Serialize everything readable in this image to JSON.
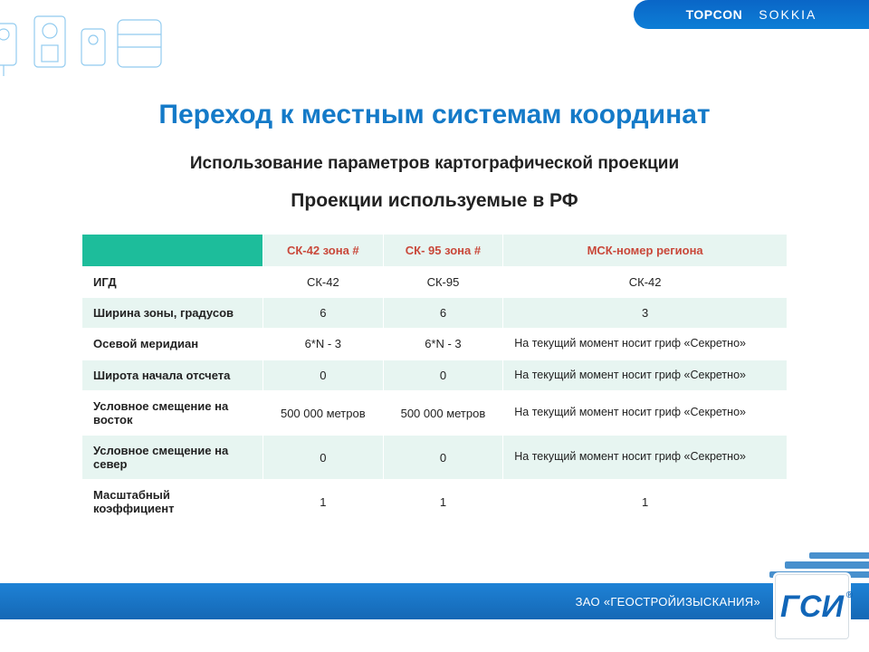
{
  "brand": {
    "left": "TOPCON",
    "right": "SOKKIA"
  },
  "title": "Переход к местным системам координат",
  "subtitle1": "Использование параметров картографической проекции",
  "subtitle2": "Проекции используемые в РФ",
  "table": {
    "header_blank": "",
    "columns": [
      "СК-42 зона #",
      "СК- 95 зона #",
      "МСК-номер региона"
    ],
    "rows": [
      {
        "label": "ИГД",
        "cells": [
          "СК-42",
          "СК-95",
          "СК-42"
        ]
      },
      {
        "label": "Ширина зоны, градусов",
        "cells": [
          "6",
          "6",
          "3"
        ]
      },
      {
        "label": "Осевой меридиан",
        "cells": [
          "6*N - 3",
          "6*N - 3",
          "На текущий момент носит гриф «Секретно»"
        ]
      },
      {
        "label": "Широта начала отсчета",
        "cells": [
          "0",
          "0",
          "На текущий момент носит гриф «Секретно»"
        ]
      },
      {
        "label": "Условное смещение на восток",
        "cells": [
          "500 000 метров",
          "500 000 метров",
          "На текущий момент носит гриф «Секретно»"
        ]
      },
      {
        "label": "Условное смещение на север",
        "cells": [
          "0",
          "0",
          "На текущий момент носит гриф «Секретно»"
        ]
      },
      {
        "label": "Масштабный коэффициент",
        "cells": [
          "1",
          "1",
          "1"
        ]
      }
    ],
    "note_match": "На текущий момент"
  },
  "footer": {
    "company": "ЗАО «ГЕОСТРОЙИЗЫСКАНИЯ»",
    "logo_text": "ГСИ",
    "reg": "®"
  },
  "colors": {
    "title": "#147ac8",
    "teal": "#1dbd9b",
    "teal_light": "#e7f5f1",
    "header_text": "#c9483a",
    "footer_grad_top": "#1e82d6",
    "footer_grad_bottom": "#1568b5"
  }
}
